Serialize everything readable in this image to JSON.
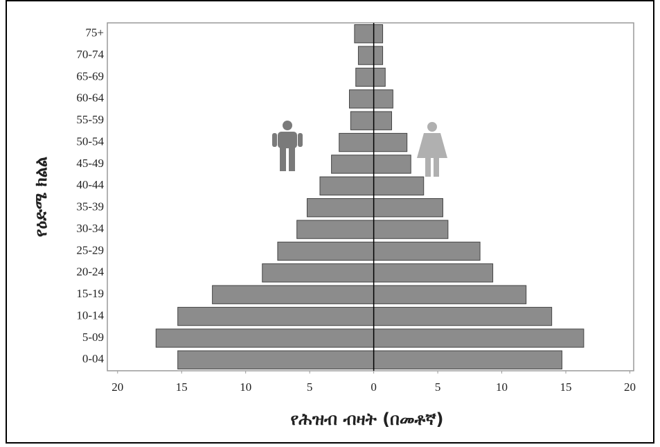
{
  "chart_data": {
    "type": "pyramid",
    "ylabel": "የዕድሜ ክልል",
    "xlabel": "የሕዝብ ብዛት (በመቶኛ)",
    "categories": [
      "0-04",
      "5-09",
      "10-14",
      "15-19",
      "20-24",
      "25-29",
      "30-34",
      "35-39",
      "40-44",
      "45-49",
      "50-54",
      "55-59",
      "60-64",
      "65-69",
      "70-74",
      "75+"
    ],
    "series": [
      {
        "color": "#8c8c8c",
        "values": [
          -15.3,
          -17.0,
          -15.3,
          -12.6,
          -8.7,
          -7.5,
          -6.0,
          -5.2,
          -4.2,
          -3.3,
          -2.7,
          -1.8,
          -1.9,
          -1.4,
          -1.2,
          -1.5
        ]
      },
      {
        "color": "#8c8c8c",
        "values": [
          14.7,
          16.4,
          13.9,
          11.9,
          9.3,
          8.3,
          5.8,
          5.4,
          3.9,
          2.9,
          2.6,
          1.4,
          1.5,
          0.9,
          0.7,
          0.7
        ]
      }
    ],
    "xlim": [
      -20.8,
      20.3
    ],
    "xticks": [
      {
        "value": -20,
        "label": "20"
      },
      {
        "value": -15,
        "label": "15"
      },
      {
        "value": -10,
        "label": "10"
      },
      {
        "value": -5,
        "label": "5"
      },
      0,
      5,
      10,
      15,
      20
    ]
  }
}
